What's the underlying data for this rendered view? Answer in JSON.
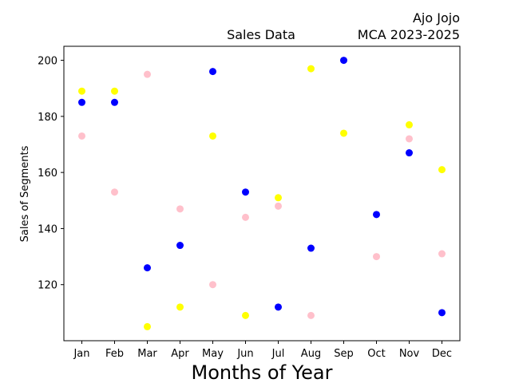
{
  "chart_data": {
    "type": "scatter",
    "title": "Sales Data",
    "subtitle_lines": [
      "Ajo Jojo",
      "MCA 2023-2025"
    ],
    "xlabel": "Months of Year",
    "ylabel": "Sales of Segments",
    "categories": [
      "Jan",
      "Feb",
      "Mar",
      "Apr",
      "May",
      "Jun",
      "Jul",
      "Aug",
      "Sep",
      "Oct",
      "Nov",
      "Dec"
    ],
    "ylim": [
      100,
      205
    ],
    "yticks": [
      120,
      140,
      160,
      180,
      200
    ],
    "grid": false,
    "series": [
      {
        "color": "#0000ff",
        "values": [
          185,
          185,
          126,
          134,
          196,
          153,
          112,
          133,
          200,
          145,
          167,
          110
        ]
      },
      {
        "color": "#ffc0cb",
        "values": [
          173,
          153,
          195,
          147,
          120,
          144,
          148,
          109,
          null,
          130,
          172,
          131
        ]
      },
      {
        "color": "#ffff00",
        "values": [
          189,
          189,
          105,
          112,
          173,
          109,
          151,
          197,
          174,
          null,
          177,
          161
        ]
      }
    ]
  }
}
